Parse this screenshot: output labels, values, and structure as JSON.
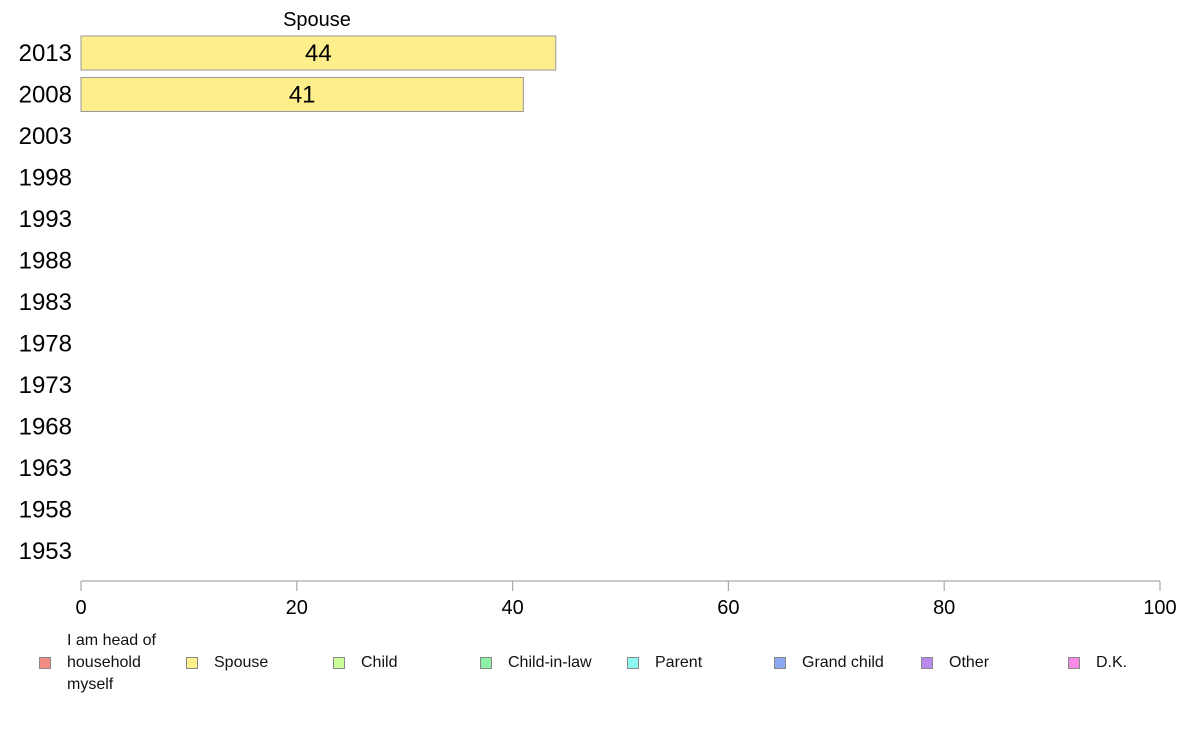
{
  "chart_data": {
    "type": "bar",
    "orientation": "horizontal",
    "title": "Spouse",
    "categories": [
      "2013",
      "2008",
      "2003",
      "1998",
      "1993",
      "1988",
      "1983",
      "1978",
      "1973",
      "1968",
      "1963",
      "1958",
      "1953"
    ],
    "series": [
      {
        "name": "Spouse",
        "color": "#ffee8c",
        "values": [
          44,
          41,
          null,
          null,
          null,
          null,
          null,
          null,
          null,
          null,
          null,
          null,
          null
        ]
      }
    ],
    "xlim": [
      0,
      100
    ],
    "xticks": [
      "0",
      "20",
      "40",
      "60",
      "80",
      "100"
    ],
    "grid": false,
    "legend_position": "bottom"
  },
  "legend": [
    {
      "label": "I am head of household myself",
      "color": "#f28b82"
    },
    {
      "label": "Spouse",
      "color": "#ffee8c"
    },
    {
      "label": "Child",
      "color": "#ccff99"
    },
    {
      "label": "Child-in-law",
      "color": "#8ef0a6"
    },
    {
      "label": "Parent",
      "color": "#8ffaf2"
    },
    {
      "label": "Grand child",
      "color": "#8ca8f0"
    },
    {
      "label": "Other",
      "color": "#b88af0"
    },
    {
      "label": "D.K.",
      "color": "#f78ae6"
    }
  ]
}
